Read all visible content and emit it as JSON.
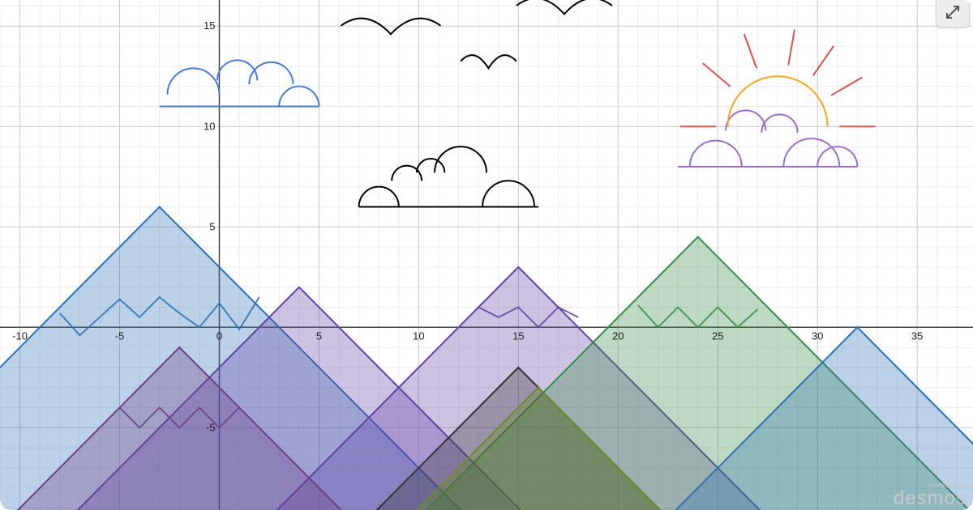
{
  "chart_data": {
    "type": "line",
    "title": "",
    "xlabel": "",
    "ylabel": "",
    "xlim": [
      -11,
      37.8
    ],
    "ylim": [
      -9.1,
      16.3
    ],
    "grid": true,
    "x_ticks": [
      -10,
      -5,
      0,
      5,
      10,
      15,
      20,
      25,
      30,
      35
    ],
    "y_ticks": [
      -5,
      5,
      10,
      15
    ],
    "mountains": [
      {
        "name": "",
        "color": "#2d70b3",
        "peak": [
          -3,
          6
        ],
        "snow": [
          [
            -8,
            0.7
          ],
          [
            -7,
            -0.4
          ],
          [
            -5,
            1.4
          ],
          [
            -4,
            0.5
          ],
          [
            -3,
            1.5
          ],
          [
            -2,
            0.7
          ],
          [
            -1,
            0
          ],
          [
            0,
            1.2
          ],
          [
            1,
            -0.1
          ],
          [
            2,
            1.5
          ]
        ]
      },
      {
        "name": "",
        "color": "#6042a6",
        "peak": [
          4,
          2
        ],
        "snow": []
      },
      {
        "name": "",
        "color": "#6042a6",
        "peak": [
          15,
          3
        ],
        "snow": [
          [
            13,
            1
          ],
          [
            14,
            0.5
          ],
          [
            15,
            1
          ],
          [
            16,
            0
          ],
          [
            17,
            1
          ],
          [
            18,
            0.5
          ]
        ]
      },
      {
        "name": "",
        "color": "#388c46",
        "peak": [
          24,
          4.5
        ],
        "snow": [
          [
            21,
            1.1
          ],
          [
            22,
            0
          ],
          [
            23,
            1
          ],
          [
            24,
            0
          ],
          [
            25,
            1
          ],
          [
            26,
            0
          ],
          [
            27,
            0.9
          ]
        ]
      },
      {
        "name": "",
        "color": "#2d70b3",
        "peak": [
          32,
          0
        ],
        "snow": []
      },
      {
        "name": "",
        "color": "#6e3e8a",
        "peak": [
          -2,
          -1
        ],
        "snow": [
          [
            -5,
            -4
          ],
          [
            -4,
            -5
          ],
          [
            -3,
            -4
          ],
          [
            -2,
            -5
          ],
          [
            -1,
            -4
          ],
          [
            0,
            -5
          ],
          [
            1,
            -4
          ]
        ]
      },
      {
        "name": "",
        "color": "#333333",
        "peak": [
          15,
          -2
        ],
        "snow": []
      },
      {
        "name": "",
        "color": "#6b8e23",
        "peak": [
          16,
          -3
        ],
        "snow": []
      }
    ],
    "clouds": [
      {
        "color": "#4a7bd0",
        "base": 11,
        "x_range": [
          -3,
          5
        ],
        "bumps": [
          [
            -1.3,
            11.6,
            1.3
          ],
          [
            0.9,
            12.3,
            1.0
          ],
          [
            2.6,
            12.1,
            1.1
          ],
          [
            4.0,
            11.0,
            1.0
          ]
        ]
      },
      {
        "color": "#000000",
        "base": 6,
        "x_range": [
          7,
          16
        ],
        "bumps": [
          [
            8.0,
            6.0,
            1.0
          ],
          [
            9.4,
            7.3,
            0.75
          ],
          [
            10.6,
            7.7,
            0.7
          ],
          [
            12.1,
            7.7,
            1.3
          ],
          [
            14.5,
            6.0,
            1.3
          ]
        ]
      },
      {
        "color": "#9b6fc7",
        "base": 8,
        "x_range": [
          23,
          32
        ],
        "bumps": [
          [
            24.9,
            8.0,
            1.3
          ],
          [
            26.4,
            9.8,
            1.0
          ],
          [
            28.1,
            9.7,
            0.9
          ],
          [
            29.7,
            8.0,
            1.4
          ],
          [
            31.0,
            8.0,
            1.0
          ]
        ]
      }
    ],
    "sun": {
      "color": "#f5a623",
      "ray_color": "#d9534f",
      "center": [
        28,
        10
      ],
      "radius": 2.5,
      "ray_inner": 3.1,
      "ray_outer": 4.9,
      "ray_angles": [
        0,
        30,
        55,
        80,
        110,
        140,
        180
      ]
    },
    "birds": [
      {
        "color": "#000000",
        "center": [
          8.6,
          15.2
        ],
        "half_width": 2.5,
        "depth": 0.6
      },
      {
        "color": "#000000",
        "center": [
          13.5,
          13.4
        ],
        "half_width": 1.4,
        "depth": 0.5
      },
      {
        "color": "#000000",
        "center": [
          17.3,
          16.2
        ],
        "half_width": 2.4,
        "depth": 0.6
      }
    ]
  },
  "watermark": {
    "powered": "powered by",
    "brand": "desmos"
  },
  "controls": {
    "expand_icon": "expand-icon"
  }
}
